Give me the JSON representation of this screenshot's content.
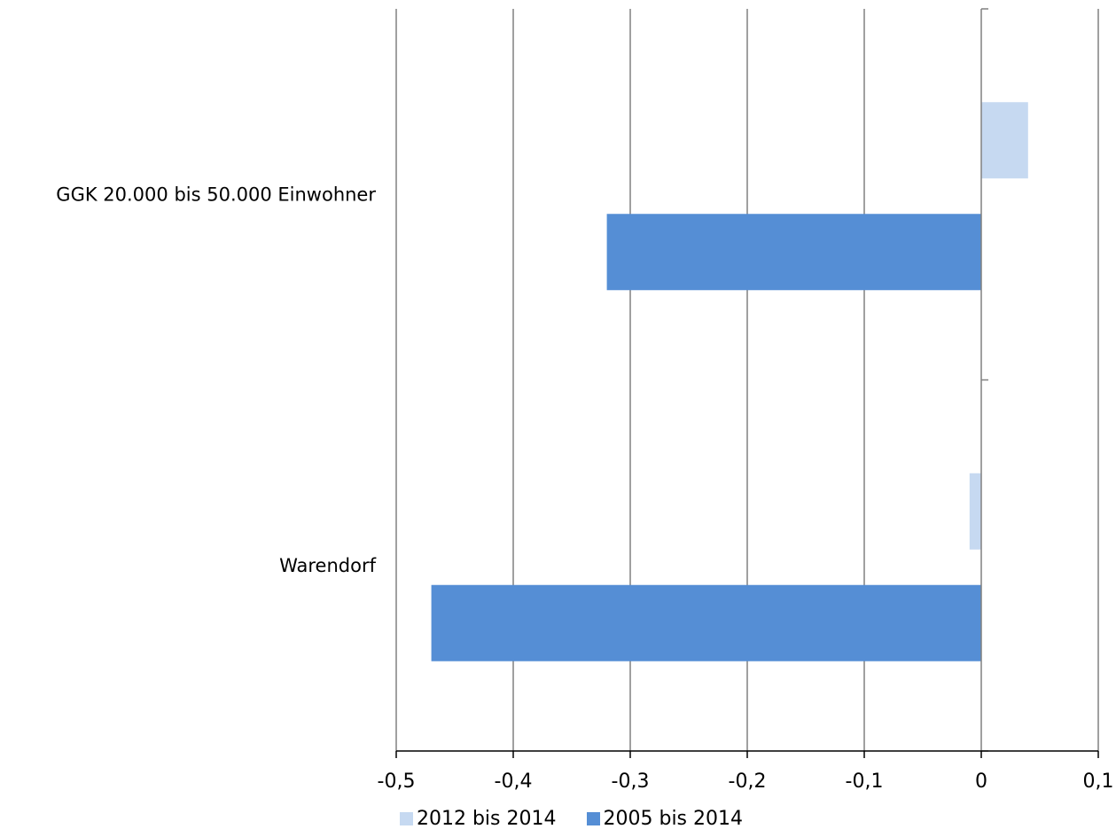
{
  "chart_data": {
    "type": "bar",
    "orientation": "horizontal",
    "categories": [
      "GGK 20.000 bis 50.000 Einwohner",
      "Warendorf"
    ],
    "series": [
      {
        "name": "2012 bis 2014",
        "values": [
          0.04,
          -0.01
        ],
        "color": "#c6d9f1"
      },
      {
        "name": "2005 bis 2014",
        "values": [
          -0.32,
          -0.47
        ],
        "color": "#558ed5"
      }
    ],
    "xlim": [
      -0.5,
      0.1
    ],
    "xticks": [
      -0.5,
      -0.4,
      -0.3,
      -0.2,
      -0.1,
      0,
      0.1
    ],
    "xtick_labels": [
      "-0,5",
      "-0,4",
      "-0,3",
      "-0,2",
      "-0,1",
      "0",
      "0,1"
    ],
    "grid": "vertical",
    "legend_position": "bottom"
  },
  "colors": {
    "gridline": "#808080",
    "axis": "#808080"
  }
}
